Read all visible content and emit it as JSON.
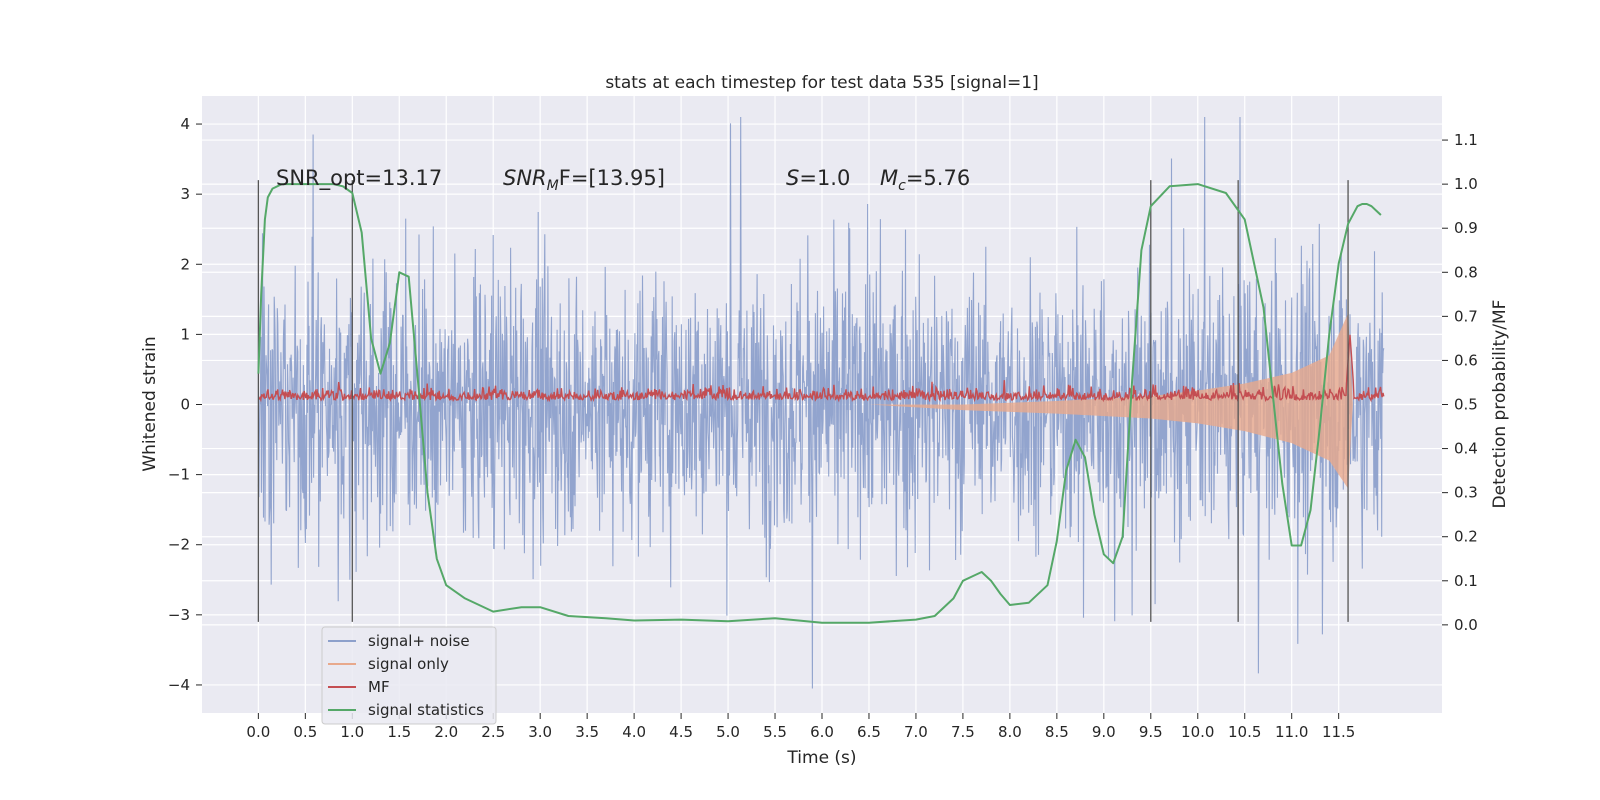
{
  "chart_data": {
    "type": "line",
    "title": "stats at each timestep for test data 535 [signal=1]",
    "xlabel": "Time (s)",
    "ylabel": "Whitened strain",
    "ylabel_right": "Detection probability/MF",
    "xlim": [
      -0.6,
      12.6
    ],
    "ylim": [
      -4.4,
      4.4
    ],
    "ylim_right": [
      -0.2,
      1.2
    ],
    "x_ticks": [
      0.0,
      0.5,
      1.0,
      1.5,
      2.0,
      2.5,
      3.0,
      3.5,
      4.0,
      4.5,
      5.0,
      5.5,
      6.0,
      6.5,
      7.0,
      7.5,
      8.0,
      8.5,
      9.0,
      9.5,
      10.0,
      10.5,
      11.0,
      11.5
    ],
    "x_tick_labels": [
      "0.0",
      "0.5",
      "1.0",
      "1.5",
      "2.0",
      "2.5",
      "3.0",
      "3.5",
      "4.0",
      "4.5",
      "5.0",
      "5.5",
      "6.0",
      "6.5",
      "7.0",
      "7.5",
      "8.0",
      "8.5",
      "9.0",
      "9.5",
      "10.0",
      "10.5",
      "11.0",
      "11.5"
    ],
    "y_ticks": [
      -4,
      -3,
      -2,
      -1,
      0,
      1,
      2,
      3,
      4
    ],
    "y_tick_labels": [
      "−4",
      "−3",
      "−2",
      "−1",
      "0",
      "1",
      "2",
      "3",
      "4"
    ],
    "y_right_ticks": [
      0.0,
      0.1,
      0.2,
      0.3,
      0.4,
      0.5,
      0.6,
      0.7,
      0.8,
      0.9,
      1.0,
      1.1
    ],
    "y_right_tick_labels": [
      "0.0",
      "0.1",
      "0.2",
      "0.3",
      "0.4",
      "0.5",
      "0.6",
      "0.7",
      "0.8",
      "0.9",
      "1.0",
      "1.1"
    ],
    "grid": true,
    "legend_position": "bottom-left",
    "background": "#eaeaf2",
    "annotations": {
      "snr_opt": "SNR_opt=13.17",
      "snr_mf": "SNR",
      "snr_mf_sub": "M",
      "snr_mf_tail": "F=[13.95]",
      "s_sym": "S",
      "s_val": "=1.0",
      "mc_sym": "M",
      "mc_sub": "c",
      "mc_val": "=5.76"
    },
    "vertical_markers_x": [
      0.0,
      1.0,
      9.5,
      10.43,
      11.6
    ],
    "vertical_markers_range": [
      -3.1,
      3.2
    ],
    "series": [
      {
        "name": "signal+ noise",
        "color": "#8da0cb",
        "axis": "left",
        "description": "whitened noisy strain from 0 to 11.98 s, envelope about ±2.7, peaks to ±4",
        "x_range": [
          0.0,
          11.98
        ],
        "envelope": 2.7
      },
      {
        "name": "signal only",
        "color": "#e8a98c",
        "axis": "left",
        "x": [
          6.5,
          7.5,
          8.5,
          9.5,
          10.0,
          10.5,
          11.0,
          11.4,
          11.6,
          11.65
        ],
        "upper": [
          0.0,
          0.0,
          0.05,
          0.12,
          0.2,
          0.3,
          0.45,
          0.7,
          1.3,
          0.0
        ],
        "lower": [
          0.0,
          -0.08,
          -0.13,
          -0.2,
          -0.27,
          -0.38,
          -0.55,
          -0.8,
          -1.2,
          0.0
        ]
      },
      {
        "name": "MF",
        "color": "#c44e52",
        "axis": "right",
        "description": "matched-filter output, baseline about 0.51, spike to 0.66 near 11.62 s",
        "baseline": 0.51,
        "peak": {
          "x": 11.62,
          "y": 0.66
        }
      },
      {
        "name": "signal statistics",
        "color": "#55a868",
        "axis": "right",
        "x": [
          0.0,
          0.03,
          0.07,
          0.1,
          0.15,
          0.25,
          0.5,
          0.8,
          0.9,
          1.0,
          1.1,
          1.2,
          1.3,
          1.4,
          1.5,
          1.6,
          1.7,
          1.8,
          1.9,
          2.0,
          2.2,
          2.5,
          2.8,
          3.0,
          3.3,
          3.7,
          4.0,
          4.5,
          5.0,
          5.5,
          6.0,
          6.5,
          7.0,
          7.2,
          7.4,
          7.5,
          7.6,
          7.7,
          7.8,
          7.9,
          8.0,
          8.2,
          8.4,
          8.5,
          8.6,
          8.7,
          8.8,
          8.9,
          9.0,
          9.1,
          9.2,
          9.3,
          9.4,
          9.5,
          9.7,
          10.0,
          10.3,
          10.5,
          10.7,
          10.9,
          11.0,
          11.1,
          11.2,
          11.3,
          11.4,
          11.5,
          11.6,
          11.7,
          11.75,
          11.8,
          11.85,
          11.9,
          11.95
        ],
        "y": [
          0.57,
          0.75,
          0.92,
          0.97,
          0.99,
          1.0,
          1.0,
          1.0,
          0.995,
          0.98,
          0.89,
          0.65,
          0.57,
          0.64,
          0.8,
          0.79,
          0.55,
          0.3,
          0.15,
          0.09,
          0.06,
          0.03,
          0.04,
          0.04,
          0.02,
          0.015,
          0.01,
          0.012,
          0.008,
          0.015,
          0.005,
          0.005,
          0.012,
          0.02,
          0.06,
          0.1,
          0.11,
          0.12,
          0.1,
          0.07,
          0.045,
          0.05,
          0.09,
          0.19,
          0.35,
          0.42,
          0.38,
          0.25,
          0.16,
          0.14,
          0.2,
          0.55,
          0.85,
          0.95,
          0.995,
          1.0,
          0.98,
          0.92,
          0.72,
          0.32,
          0.18,
          0.18,
          0.26,
          0.45,
          0.66,
          0.82,
          0.91,
          0.95,
          0.955,
          0.955,
          0.95,
          0.94,
          0.93
        ]
      }
    ]
  }
}
